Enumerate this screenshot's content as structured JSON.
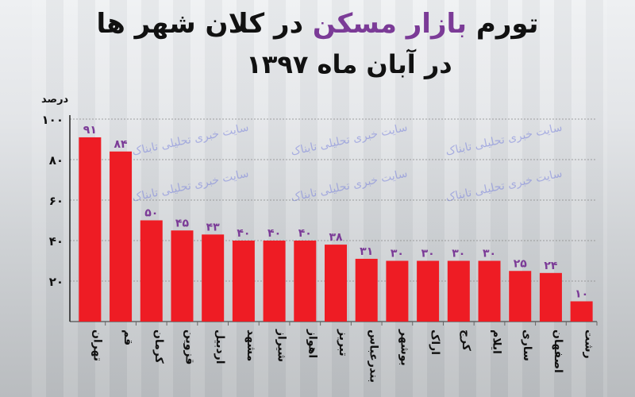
{
  "title": {
    "part1": "تورم",
    "highlight": "بازار مسکن",
    "part2": "در کلان شهر ها",
    "line2": "در آبان ماه ۱۳۹۷"
  },
  "watermark": "سایت خبری تحلیلی تابناک",
  "colors": {
    "bar": "#ee1c24",
    "highlight": "#7b3b97",
    "grid": "#888888"
  },
  "chart_data": {
    "type": "bar",
    "ylabel": "درصد",
    "ylim": [
      0,
      100
    ],
    "yticks": [
      20,
      40,
      60,
      80,
      100
    ],
    "ytick_labels": [
      "۲۰",
      "۴۰",
      "۶۰",
      "۸۰",
      "۱۰۰"
    ],
    "grid": true,
    "categories": [
      "تهران",
      "قم",
      "کرمان",
      "قزوین",
      "اردبیل",
      "مشهد",
      "شیراز",
      "اهواز",
      "تبریز",
      "بندرعباس",
      "بوشهر",
      "اراک",
      "کرج",
      "ایلام",
      "ساری",
      "اصفهان",
      "رشت"
    ],
    "values": [
      91,
      84,
      50,
      45,
      43,
      40,
      40,
      40,
      38,
      31,
      30,
      30,
      30,
      30,
      25,
      24,
      10
    ],
    "data_labels": [
      "۹۱",
      "۸۴",
      "۵۰",
      "۴۵",
      "۴۳",
      "۴۰",
      "۴۰",
      "۴۰",
      "۳۸",
      "۳۱",
      "۳۰",
      "۳۰",
      "۳۰",
      "۳۰",
      "۲۵",
      "۲۴",
      "۱۰"
    ]
  }
}
